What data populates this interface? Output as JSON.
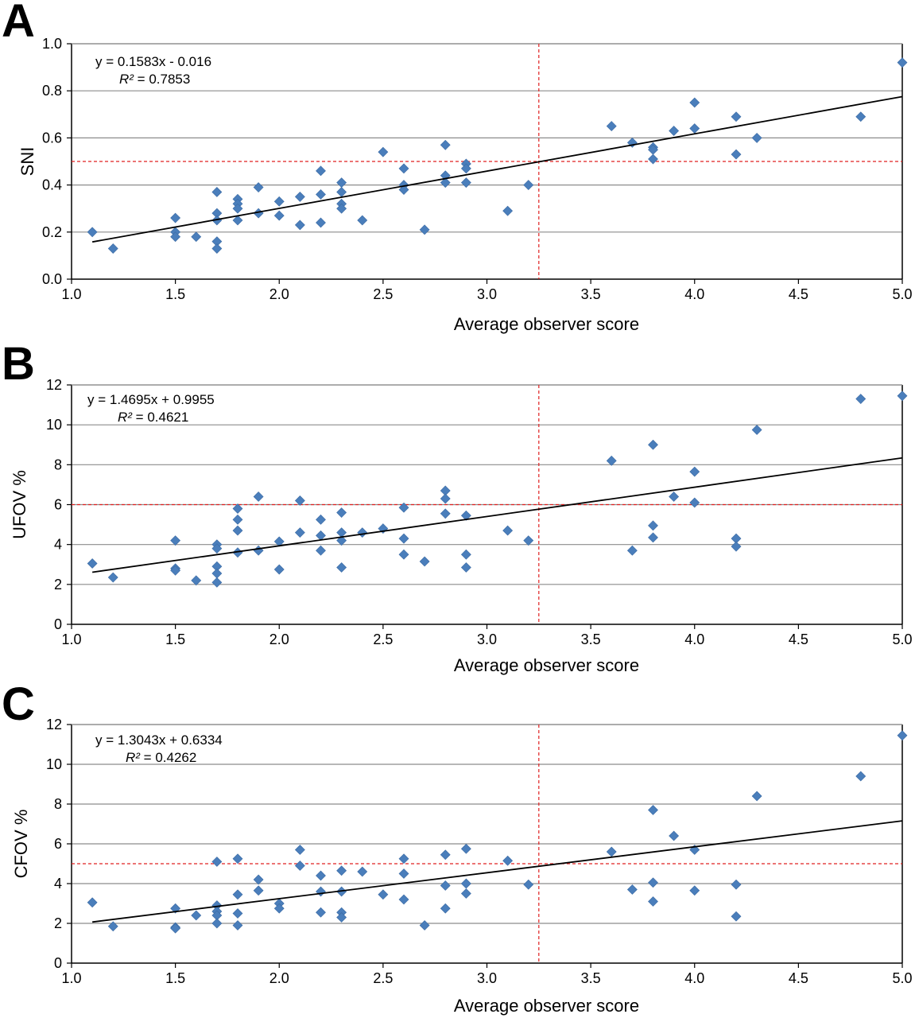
{
  "chart_data": [
    {
      "type": "scatter",
      "panel": "A",
      "xlabel": "Average observer score",
      "ylabel": "SNI",
      "xlim": [
        1.0,
        5.0
      ],
      "ylim": [
        0.0,
        1.0
      ],
      "xticks": [
        "1.0",
        "1.5",
        "2.0",
        "2.5",
        "3.0",
        "3.5",
        "4.0",
        "4.5",
        "5.0"
      ],
      "yticks": [
        "0.0",
        "0.2",
        "0.4",
        "0.6",
        "0.8",
        "1.0"
      ],
      "grid": true,
      "equation": "y = 0.1583x - 0.016",
      "r2_label": "R²",
      "r2_value": " = 0.7853",
      "trendline": {
        "slope": 0.1583,
        "intercept": -0.016
      },
      "threshold_x": 3.25,
      "threshold_y": 0.5,
      "points": [
        [
          1.1,
          0.2
        ],
        [
          1.2,
          0.13
        ],
        [
          1.5,
          0.26
        ],
        [
          1.5,
          0.2
        ],
        [
          1.5,
          0.18
        ],
        [
          1.6,
          0.18
        ],
        [
          1.7,
          0.37
        ],
        [
          1.7,
          0.28
        ],
        [
          1.7,
          0.25
        ],
        [
          1.7,
          0.16
        ],
        [
          1.7,
          0.13
        ],
        [
          1.8,
          0.34
        ],
        [
          1.8,
          0.32
        ],
        [
          1.8,
          0.3
        ],
        [
          1.8,
          0.25
        ],
        [
          1.9,
          0.39
        ],
        [
          1.9,
          0.28
        ],
        [
          2.0,
          0.33
        ],
        [
          2.0,
          0.27
        ],
        [
          2.1,
          0.35
        ],
        [
          2.1,
          0.23
        ],
        [
          2.2,
          0.46
        ],
        [
          2.2,
          0.36
        ],
        [
          2.2,
          0.24
        ],
        [
          2.3,
          0.41
        ],
        [
          2.3,
          0.37
        ],
        [
          2.3,
          0.32
        ],
        [
          2.3,
          0.3
        ],
        [
          2.4,
          0.25
        ],
        [
          2.5,
          0.54
        ],
        [
          2.6,
          0.47
        ],
        [
          2.6,
          0.4
        ],
        [
          2.6,
          0.38
        ],
        [
          2.7,
          0.21
        ],
        [
          2.8,
          0.57
        ],
        [
          2.8,
          0.44
        ],
        [
          2.8,
          0.41
        ],
        [
          2.9,
          0.49
        ],
        [
          2.9,
          0.47
        ],
        [
          2.9,
          0.41
        ],
        [
          3.1,
          0.29
        ],
        [
          3.2,
          0.4
        ],
        [
          3.6,
          0.65
        ],
        [
          3.7,
          0.58
        ],
        [
          3.8,
          0.56
        ],
        [
          3.8,
          0.55
        ],
        [
          3.8,
          0.51
        ],
        [
          3.9,
          0.63
        ],
        [
          4.0,
          0.75
        ],
        [
          4.0,
          0.64
        ],
        [
          4.2,
          0.69
        ],
        [
          4.2,
          0.53
        ],
        [
          4.3,
          0.6
        ],
        [
          4.8,
          0.69
        ],
        [
          5.0,
          0.92
        ]
      ]
    },
    {
      "type": "scatter",
      "panel": "B",
      "xlabel": "Average observer score",
      "ylabel": "UFOV %",
      "xlim": [
        1.0,
        5.0
      ],
      "ylim": [
        0,
        12
      ],
      "xticks": [
        "1.0",
        "1.5",
        "2.0",
        "2.5",
        "3.0",
        "3.5",
        "4.0",
        "4.5",
        "5.0"
      ],
      "yticks": [
        "0",
        "2",
        "4",
        "6",
        "8",
        "10",
        "12"
      ],
      "grid": true,
      "equation": "y = 1.4695x + 0.9955",
      "r2_label": "R²",
      "r2_value": " = 0.4621",
      "trendline": {
        "slope": 1.4695,
        "intercept": 0.9955
      },
      "threshold_x": 3.25,
      "threshold_y": 6,
      "points": [
        [
          1.1,
          3.05
        ],
        [
          1.2,
          2.35
        ],
        [
          1.5,
          4.2
        ],
        [
          1.5,
          2.8
        ],
        [
          1.5,
          2.7
        ],
        [
          1.6,
          2.2
        ],
        [
          1.7,
          4.0
        ],
        [
          1.7,
          3.8
        ],
        [
          1.7,
          2.9
        ],
        [
          1.7,
          2.55
        ],
        [
          1.7,
          2.1
        ],
        [
          1.8,
          5.8
        ],
        [
          1.8,
          5.25
        ],
        [
          1.8,
          4.7
        ],
        [
          1.8,
          3.6
        ],
        [
          1.9,
          6.4
        ],
        [
          1.9,
          3.7
        ],
        [
          2.0,
          4.15
        ],
        [
          2.0,
          2.75
        ],
        [
          2.1,
          6.2
        ],
        [
          2.1,
          4.6
        ],
        [
          2.2,
          5.25
        ],
        [
          2.2,
          4.45
        ],
        [
          2.2,
          3.7
        ],
        [
          2.3,
          5.6
        ],
        [
          2.3,
          4.6
        ],
        [
          2.3,
          4.2
        ],
        [
          2.3,
          2.85
        ],
        [
          2.4,
          4.6
        ],
        [
          2.5,
          4.8
        ],
        [
          2.6,
          5.85
        ],
        [
          2.6,
          4.3
        ],
        [
          2.6,
          3.5
        ],
        [
          2.7,
          3.15
        ],
        [
          2.8,
          6.7
        ],
        [
          2.8,
          6.3
        ],
        [
          2.8,
          5.55
        ],
        [
          2.9,
          5.45
        ],
        [
          2.9,
          3.5
        ],
        [
          2.9,
          2.85
        ],
        [
          3.1,
          4.7
        ],
        [
          3.2,
          4.2
        ],
        [
          3.6,
          8.2
        ],
        [
          3.7,
          3.7
        ],
        [
          3.8,
          9.0
        ],
        [
          3.8,
          4.95
        ],
        [
          3.8,
          4.35
        ],
        [
          3.9,
          6.4
        ],
        [
          4.0,
          7.65
        ],
        [
          4.0,
          6.1
        ],
        [
          4.2,
          4.3
        ],
        [
          4.2,
          3.9
        ],
        [
          4.3,
          9.75
        ],
        [
          4.8,
          11.3
        ],
        [
          5.0,
          11.45
        ]
      ]
    },
    {
      "type": "scatter",
      "panel": "C",
      "xlabel": "Average observer score",
      "ylabel": "CFOV %",
      "xlim": [
        1.0,
        5.0
      ],
      "ylim": [
        0,
        12
      ],
      "xticks": [
        "1.0",
        "1.5",
        "2.0",
        "2.5",
        "3.0",
        "3.5",
        "4.0",
        "4.5",
        "5.0"
      ],
      "yticks": [
        "0",
        "2",
        "4",
        "6",
        "8",
        "10",
        "12"
      ],
      "grid": true,
      "equation": "y = 1.3043x + 0.6334",
      "r2_label": "R²",
      "r2_value": " = 0.4262",
      "trendline": {
        "slope": 1.3043,
        "intercept": 0.6334
      },
      "threshold_x": 3.25,
      "threshold_y": 5,
      "points": [
        [
          1.1,
          3.05
        ],
        [
          1.2,
          1.85
        ],
        [
          1.5,
          2.75
        ],
        [
          1.5,
          1.8
        ],
        [
          1.5,
          1.75
        ],
        [
          1.6,
          2.4
        ],
        [
          1.7,
          5.1
        ],
        [
          1.7,
          2.9
        ],
        [
          1.7,
          2.6
        ],
        [
          1.7,
          2.4
        ],
        [
          1.7,
          2.0
        ],
        [
          1.8,
          5.25
        ],
        [
          1.8,
          3.45
        ],
        [
          1.8,
          2.5
        ],
        [
          1.8,
          1.9
        ],
        [
          1.9,
          4.2
        ],
        [
          1.9,
          3.65
        ],
        [
          2.0,
          3.0
        ],
        [
          2.0,
          2.75
        ],
        [
          2.1,
          5.7
        ],
        [
          2.1,
          4.9
        ],
        [
          2.2,
          4.4
        ],
        [
          2.2,
          3.6
        ],
        [
          2.2,
          2.55
        ],
        [
          2.3,
          4.65
        ],
        [
          2.3,
          3.6
        ],
        [
          2.3,
          2.55
        ],
        [
          2.3,
          2.3
        ],
        [
          2.4,
          4.6
        ],
        [
          2.5,
          3.45
        ],
        [
          2.6,
          5.25
        ],
        [
          2.6,
          4.5
        ],
        [
          2.6,
          3.2
        ],
        [
          2.7,
          1.9
        ],
        [
          2.8,
          5.45
        ],
        [
          2.8,
          3.9
        ],
        [
          2.8,
          2.75
        ],
        [
          2.9,
          5.75
        ],
        [
          2.9,
          4.0
        ],
        [
          2.9,
          3.5
        ],
        [
          3.1,
          5.15
        ],
        [
          3.2,
          3.95
        ],
        [
          3.6,
          5.6
        ],
        [
          3.7,
          3.7
        ],
        [
          3.8,
          7.7
        ],
        [
          3.8,
          4.05
        ],
        [
          3.8,
          3.1
        ],
        [
          3.9,
          6.4
        ],
        [
          4.0,
          5.7
        ],
        [
          4.0,
          3.65
        ],
        [
          4.2,
          3.95
        ],
        [
          4.2,
          2.35
        ],
        [
          4.3,
          8.4
        ],
        [
          4.8,
          9.4
        ],
        [
          5.0,
          11.45
        ]
      ]
    }
  ],
  "colors": {
    "marker": "#4a7ebb",
    "gridline": "#8c8c8c",
    "trendline": "#000000",
    "threshold": "#e02020",
    "axis": "#000000"
  }
}
